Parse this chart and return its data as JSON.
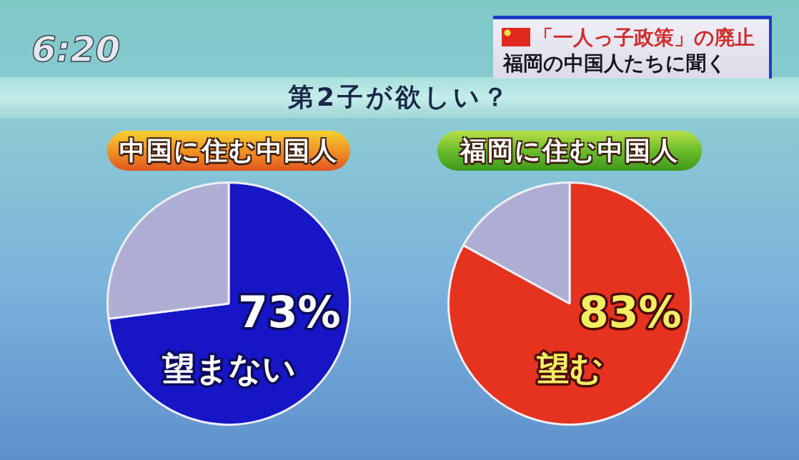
{
  "chart_data": [
    {
      "type": "other",
      "title": "第2子が欲しい？",
      "annotations": [
        "6:20",
        "「一人っ子政策」の廃止",
        "福岡の中国人たちに聞く"
      ]
    },
    {
      "type": "pie",
      "title": "中国に住む中国人",
      "categories": [
        "望まない",
        null
      ],
      "values": [
        73,
        27
      ],
      "colors": [
        "#1616c6",
        "#aeaed4"
      ],
      "value_labels": [
        "73%",
        null
      ]
    },
    {
      "type": "pie",
      "title": "福岡に住む中国人",
      "categories": [
        "望む",
        null
      ],
      "values": [
        83,
        17
      ],
      "colors": [
        "#e5331f",
        "#aeaed4"
      ],
      "value_labels": [
        "83%",
        null
      ]
    }
  ]
}
